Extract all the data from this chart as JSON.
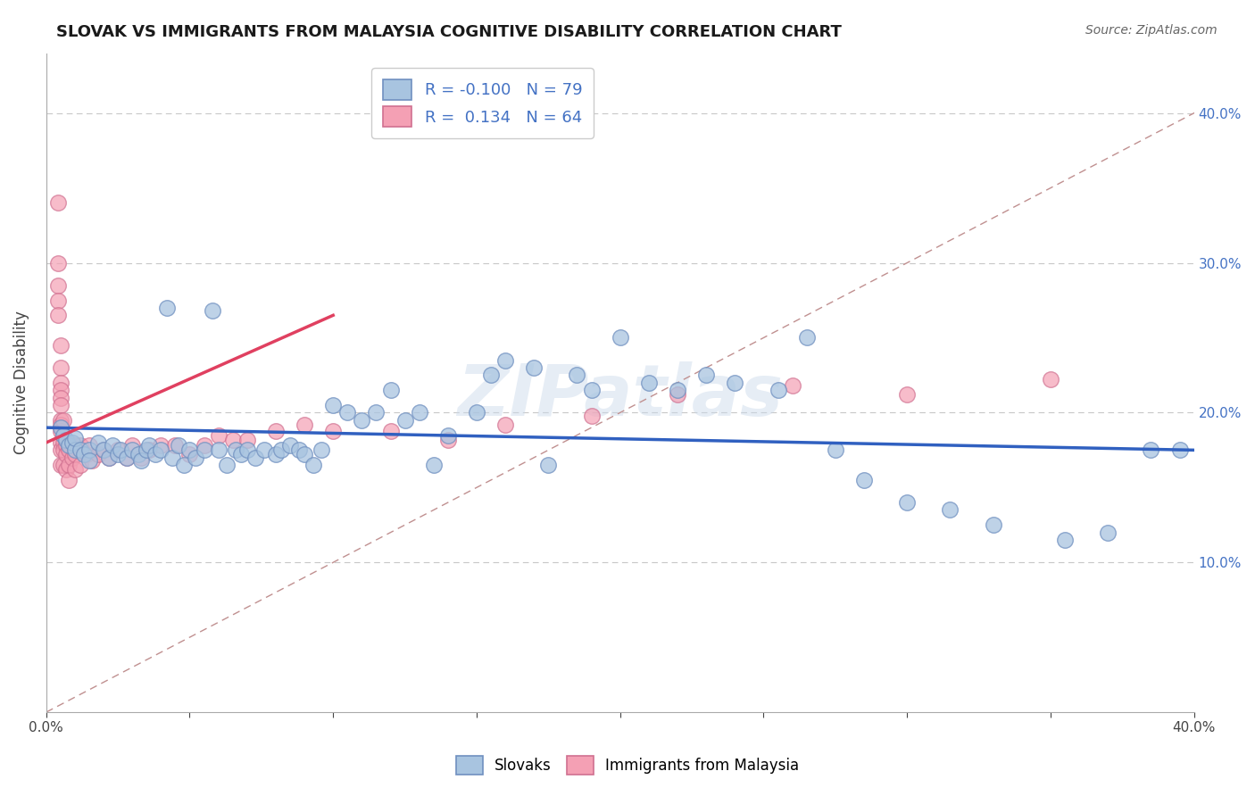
{
  "title": "SLOVAK VS IMMIGRANTS FROM MALAYSIA COGNITIVE DISABILITY CORRELATION CHART",
  "source": "Source: ZipAtlas.com",
  "ylabel": "Cognitive Disability",
  "xlim": [
    0.0,
    0.4
  ],
  "ylim": [
    0.0,
    0.44
  ],
  "color_slovak": "#a8c4e0",
  "color_immigrant": "#f4a0b4",
  "color_trend_slovak": "#3060c0",
  "color_trend_immigrant": "#e04060",
  "color_diagonal": "#d0a0a8",
  "watermark": "ZIPatlas",
  "slovak_x": [
    0.005,
    0.006,
    0.007,
    0.008,
    0.009,
    0.01,
    0.01,
    0.012,
    0.013,
    0.015,
    0.015,
    0.018,
    0.02,
    0.022,
    0.023,
    0.025,
    0.026,
    0.028,
    0.03,
    0.032,
    0.033,
    0.035,
    0.036,
    0.038,
    0.04,
    0.042,
    0.044,
    0.046,
    0.048,
    0.05,
    0.052,
    0.055,
    0.058,
    0.06,
    0.063,
    0.066,
    0.068,
    0.07,
    0.073,
    0.076,
    0.08,
    0.082,
    0.085,
    0.088,
    0.09,
    0.093,
    0.096,
    0.1,
    0.105,
    0.11,
    0.115,
    0.12,
    0.125,
    0.13,
    0.135,
    0.14,
    0.15,
    0.155,
    0.16,
    0.17,
    0.175,
    0.185,
    0.19,
    0.2,
    0.21,
    0.22,
    0.23,
    0.24,
    0.255,
    0.265,
    0.275,
    0.285,
    0.3,
    0.315,
    0.33,
    0.355,
    0.37,
    0.385,
    0.395
  ],
  "slovak_y": [
    0.19,
    0.185,
    0.182,
    0.178,
    0.18,
    0.175,
    0.183,
    0.175,
    0.172,
    0.175,
    0.168,
    0.18,
    0.175,
    0.17,
    0.178,
    0.172,
    0.175,
    0.17,
    0.175,
    0.172,
    0.168,
    0.175,
    0.178,
    0.172,
    0.175,
    0.27,
    0.17,
    0.178,
    0.165,
    0.175,
    0.17,
    0.175,
    0.268,
    0.175,
    0.165,
    0.175,
    0.172,
    0.175,
    0.17,
    0.175,
    0.172,
    0.175,
    0.178,
    0.175,
    0.172,
    0.165,
    0.175,
    0.205,
    0.2,
    0.195,
    0.2,
    0.215,
    0.195,
    0.2,
    0.165,
    0.185,
    0.2,
    0.225,
    0.235,
    0.23,
    0.165,
    0.225,
    0.215,
    0.25,
    0.22,
    0.215,
    0.225,
    0.22,
    0.215,
    0.25,
    0.175,
    0.155,
    0.14,
    0.135,
    0.125,
    0.115,
    0.12,
    0.175,
    0.175
  ],
  "immigrant_x": [
    0.004,
    0.004,
    0.004,
    0.004,
    0.004,
    0.005,
    0.005,
    0.005,
    0.005,
    0.005,
    0.005,
    0.005,
    0.005,
    0.005,
    0.005,
    0.005,
    0.005,
    0.006,
    0.006,
    0.006,
    0.006,
    0.006,
    0.007,
    0.007,
    0.007,
    0.008,
    0.008,
    0.008,
    0.008,
    0.009,
    0.01,
    0.01,
    0.01,
    0.012,
    0.012,
    0.014,
    0.015,
    0.016,
    0.018,
    0.02,
    0.022,
    0.025,
    0.028,
    0.03,
    0.033,
    0.036,
    0.04,
    0.045,
    0.05,
    0.055,
    0.06,
    0.065,
    0.07,
    0.08,
    0.09,
    0.1,
    0.12,
    0.14,
    0.16,
    0.19,
    0.22,
    0.26,
    0.3,
    0.35
  ],
  "immigrant_y": [
    0.34,
    0.3,
    0.285,
    0.275,
    0.265,
    0.245,
    0.23,
    0.22,
    0.215,
    0.21,
    0.205,
    0.195,
    0.192,
    0.188,
    0.18,
    0.175,
    0.165,
    0.195,
    0.185,
    0.18,
    0.175,
    0.165,
    0.178,
    0.172,
    0.162,
    0.18,
    0.175,
    0.165,
    0.155,
    0.17,
    0.178,
    0.172,
    0.162,
    0.178,
    0.165,
    0.172,
    0.178,
    0.168,
    0.172,
    0.175,
    0.17,
    0.175,
    0.17,
    0.178,
    0.17,
    0.175,
    0.178,
    0.178,
    0.172,
    0.178,
    0.185,
    0.182,
    0.182,
    0.188,
    0.192,
    0.188,
    0.188,
    0.182,
    0.192,
    0.198,
    0.212,
    0.218,
    0.212,
    0.222
  ]
}
